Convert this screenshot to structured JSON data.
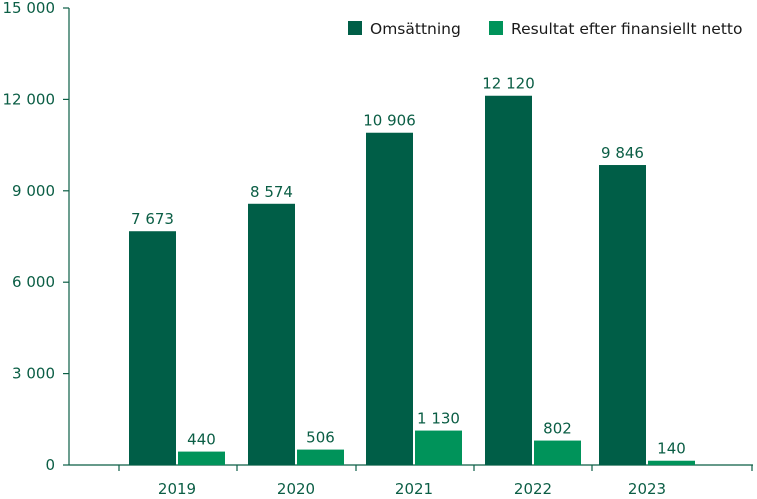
{
  "chart_data": {
    "type": "bar",
    "categories": [
      "2019",
      "2020",
      "2021",
      "2022",
      "2023"
    ],
    "series": [
      {
        "name": "Omsättning",
        "color": "#005e47",
        "values": [
          7673,
          8574,
          10906,
          12120,
          9846
        ]
      },
      {
        "name": "Resultat efter finansiellt netto",
        "color": "#00935a",
        "values": [
          440,
          506,
          1130,
          802,
          140
        ]
      }
    ],
    "value_labels": [
      [
        "7 673",
        "8 574",
        "10 906",
        "12 120",
        "9 846"
      ],
      [
        "440",
        "506",
        "1 130",
        "802",
        "140"
      ]
    ],
    "ylim": [
      0,
      15000
    ],
    "yticks": [
      0,
      3000,
      6000,
      9000,
      12000,
      15000
    ],
    "ytick_labels": [
      "0",
      "3 000",
      "6 000",
      "9 000",
      "12 000",
      "15 000"
    ],
    "axis_color": "#0b5e45",
    "legend_position": "top-right",
    "grid": false
  }
}
